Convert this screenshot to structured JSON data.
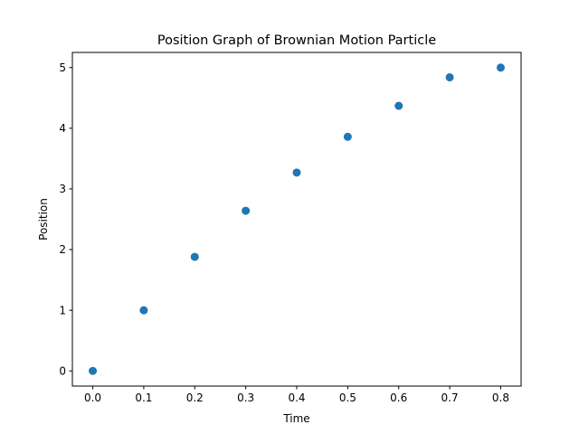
{
  "chart_data": {
    "type": "scatter",
    "title": "Position Graph of Brownian Motion Particle",
    "xlabel": "Time",
    "ylabel": "Position",
    "x": [
      0.0,
      0.1,
      0.2,
      0.3,
      0.4,
      0.5,
      0.6,
      0.7,
      0.8
    ],
    "y": [
      0.0,
      1.0,
      1.88,
      2.64,
      3.27,
      3.86,
      4.37,
      4.84,
      5.0
    ],
    "xlim": [
      -0.04,
      0.84
    ],
    "ylim": [
      -0.25,
      5.25
    ],
    "xticks": [
      0.0,
      0.1,
      0.2,
      0.3,
      0.4,
      0.5,
      0.6,
      0.7,
      0.8
    ],
    "xtick_labels": [
      "0.0",
      "0.1",
      "0.2",
      "0.3",
      "0.4",
      "0.5",
      "0.6",
      "0.7",
      "0.8"
    ],
    "yticks": [
      0,
      1,
      2,
      3,
      4,
      5
    ],
    "ytick_labels": [
      "0",
      "1",
      "2",
      "3",
      "4",
      "5"
    ],
    "grid": false,
    "marker_color": "#1f77b4"
  }
}
